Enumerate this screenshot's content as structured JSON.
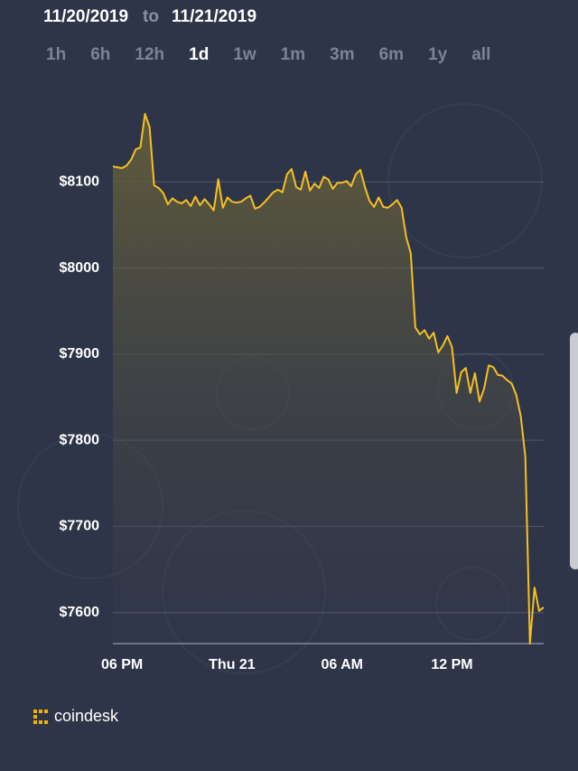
{
  "header": {
    "date_from": "11/20/2019",
    "separator": "to",
    "date_to": "11/21/2019",
    "timeframes": [
      "1h",
      "6h",
      "12h",
      "1d",
      "1w",
      "1m",
      "3m",
      "6m",
      "1y",
      "all"
    ],
    "active_timeframe": 3
  },
  "footer": {
    "logo": "coindesk"
  },
  "chart_data": {
    "type": "line",
    "color": "#f5c022",
    "grid": true,
    "categories": [
      null,
      null,
      "06 PM",
      null,
      null,
      null,
      null,
      null,
      null,
      null,
      null,
      null,
      null,
      null,
      null,
      null,
      null,
      null,
      null,
      null,
      null,
      null,
      null,
      null,
      null,
      null,
      "Thu 21",
      null,
      null,
      null,
      null,
      null,
      null,
      null,
      null,
      null,
      null,
      null,
      null,
      null,
      null,
      null,
      null,
      null,
      null,
      null,
      null,
      null,
      null,
      null,
      "06 AM",
      null,
      null,
      null,
      null,
      null,
      null,
      null,
      null,
      null,
      null,
      null,
      null,
      null,
      null,
      null,
      null,
      null,
      null,
      null,
      null,
      null,
      null,
      null,
      "12 PM",
      null,
      null,
      null,
      null,
      null,
      null,
      null,
      null,
      null,
      null,
      null,
      null,
      null,
      null,
      null,
      null,
      null,
      null,
      null,
      null
    ],
    "values": [
      8118,
      8117,
      8116,
      8119,
      8126,
      8138,
      8140,
      8179,
      8164,
      8096,
      8093,
      8087,
      8074,
      8081,
      8077,
      8075,
      8079,
      8072,
      8083,
      8073,
      8080,
      8074,
      8067,
      8103,
      8070,
      8082,
      8077,
      8076,
      8077,
      8081,
      8084,
      8069,
      8071,
      8076,
      8082,
      8088,
      8091,
      8088,
      8109,
      8115,
      8094,
      8091,
      8112,
      8090,
      8098,
      8093,
      8106,
      8103,
      8092,
      8099,
      8099,
      8101,
      8095,
      8109,
      8114,
      8094,
      8078,
      8071,
      8082,
      8071,
      8070,
      8074,
      8079,
      8070,
      8036,
      8017,
      7931,
      7923,
      7928,
      7918,
      7925,
      7902,
      7910,
      7921,
      7908,
      7855,
      7879,
      7884,
      7855,
      7878,
      7845,
      7860,
      7887,
      7885,
      7876,
      7875,
      7870,
      7866,
      7853,
      7828,
      7781,
      7564,
      7629,
      7602,
      7606
    ],
    "ylim": [
      7564,
      8200
    ],
    "yticks": [
      {
        "value": 7600,
        "label": "$7600"
      },
      {
        "value": 7700,
        "label": "$7700"
      },
      {
        "value": 7800,
        "label": "$7800"
      },
      {
        "value": 7900,
        "label": "$7900"
      },
      {
        "value": 8000,
        "label": "$8000"
      },
      {
        "value": 8100,
        "label": "$8100"
      }
    ]
  }
}
